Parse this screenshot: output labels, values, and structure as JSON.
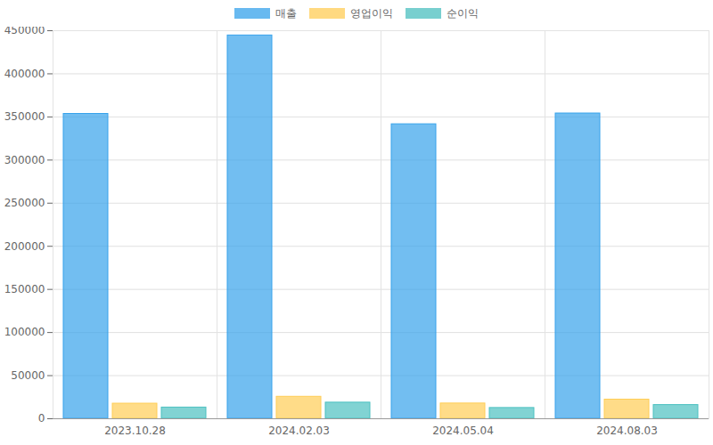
{
  "chart_data": {
    "type": "bar",
    "categories": [
      "2023.10.28",
      "2024.02.03",
      "2024.05.04",
      "2024.08.03"
    ],
    "series": [
      {
        "name": "매출",
        "color": "#36a2eb",
        "values": [
          353500,
          444500,
          341500,
          354000
        ]
      },
      {
        "name": "영업이익",
        "color": "#ffcd56",
        "values": [
          17500,
          25500,
          17700,
          22200
        ]
      },
      {
        "name": "순이익",
        "color": "#4bc0c0",
        "values": [
          13000,
          18700,
          12500,
          15900
        ]
      }
    ],
    "ylim": [
      0,
      450000
    ],
    "yticks": [
      0,
      50000,
      100000,
      150000,
      200000,
      250000,
      300000,
      350000,
      400000,
      450000
    ],
    "grid": true,
    "legend": "top"
  }
}
